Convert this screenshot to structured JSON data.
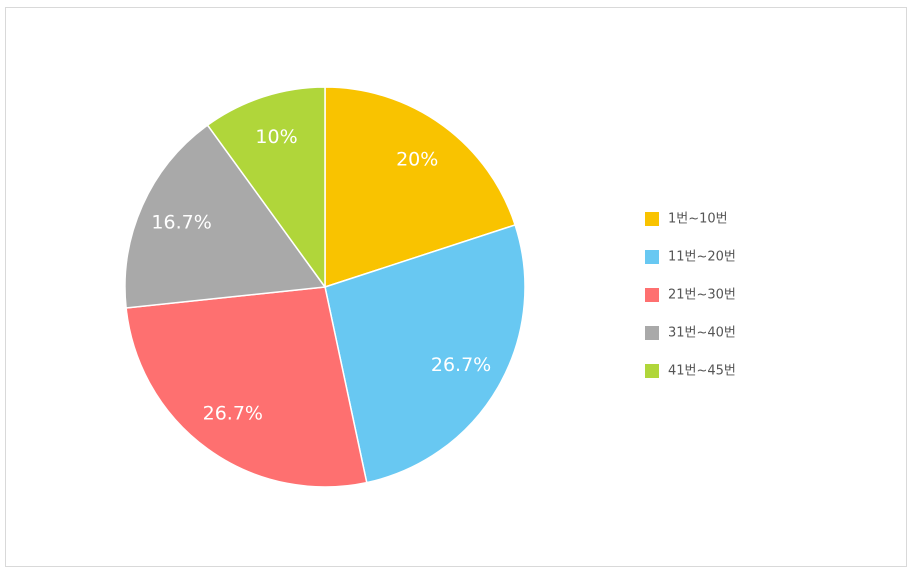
{
  "chart_data": {
    "type": "pie",
    "categories": [
      "1번~10번",
      "11번~20번",
      "21번~30번",
      "31번~40번",
      "41번~45번"
    ],
    "values": [
      20,
      26.7,
      26.7,
      16.7,
      10
    ],
    "value_labels": [
      "20%",
      "26.7%",
      "26.7%",
      "16.7%",
      "10%"
    ],
    "colors": [
      "#f9c300",
      "#68c8f2",
      "#fe7070",
      "#a9a9a9",
      "#b0d63a"
    ],
    "legend": "right"
  }
}
